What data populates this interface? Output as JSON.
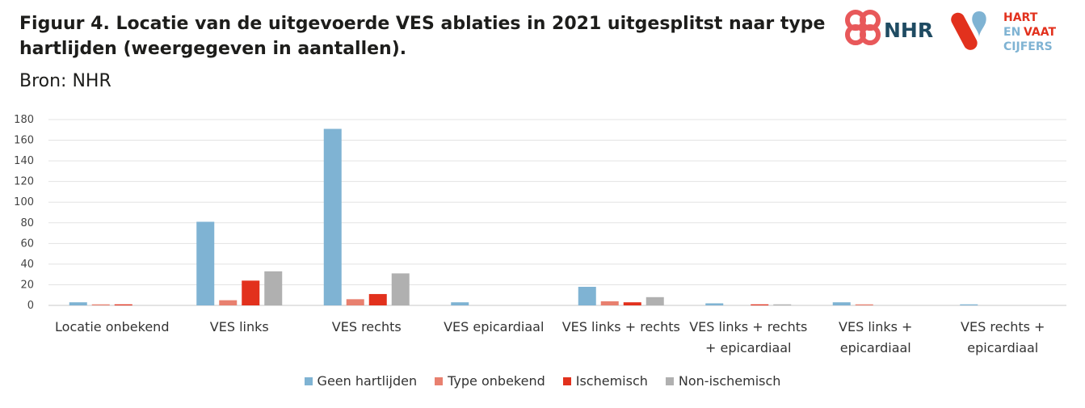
{
  "header": {
    "title": "Figuur 4. Locatie van de uitgevoerde VES ablaties in 2021 uitgesplitst naar type hartlijden (weergegeven in aantallen).",
    "source": "Bron: NHR"
  },
  "logos": {
    "nhr": "NHR",
    "hvc_line1": "HART",
    "hvc_line2a": "EN",
    "hvc_line2b": "VAAT",
    "hvc_line3": "CIJFERS"
  },
  "colors": {
    "geen": "#7fb3d3",
    "onbekend": "#e8806f",
    "ischemisch": "#e2311d",
    "nonisch": "#b0b0b0",
    "nhr_red": "#e8585a",
    "nhr_navy": "#1f4b62",
    "hvc_red": "#e2311d",
    "hvc_blue": "#7fb3d3"
  },
  "chart_data": {
    "type": "bar",
    "categories": [
      [
        "Locatie onbekend"
      ],
      [
        "VES links"
      ],
      [
        "VES rechts"
      ],
      [
        "VES epicardiaal"
      ],
      [
        "VES links + rechts"
      ],
      [
        "VES links + rechts",
        "+ epicardiaal"
      ],
      [
        "VES links +",
        "epicardiaal"
      ],
      [
        "VES rechts +",
        "epicardiaal"
      ]
    ],
    "series": [
      {
        "name": "Geen hartlijden",
        "color": "#7fb3d3",
        "values": [
          3,
          81,
          171,
          3,
          18,
          2,
          3,
          1
        ]
      },
      {
        "name": "Type onbekend",
        "color": "#e8806f",
        "values": [
          1,
          5,
          6,
          0,
          4,
          0,
          1,
          0
        ]
      },
      {
        "name": "Ischemisch",
        "color": "#e2311d",
        "values": [
          1,
          24,
          11,
          0,
          3,
          1,
          0,
          0
        ]
      },
      {
        "name": "Non-ischemisch",
        "color": "#b0b0b0",
        "values": [
          0,
          33,
          31,
          0,
          8,
          1,
          0,
          0
        ]
      }
    ],
    "ylim": [
      0,
      180
    ],
    "yticks": [
      0,
      20,
      40,
      60,
      80,
      100,
      120,
      140,
      160,
      180
    ],
    "grid": true,
    "legend_position": "bottom"
  }
}
